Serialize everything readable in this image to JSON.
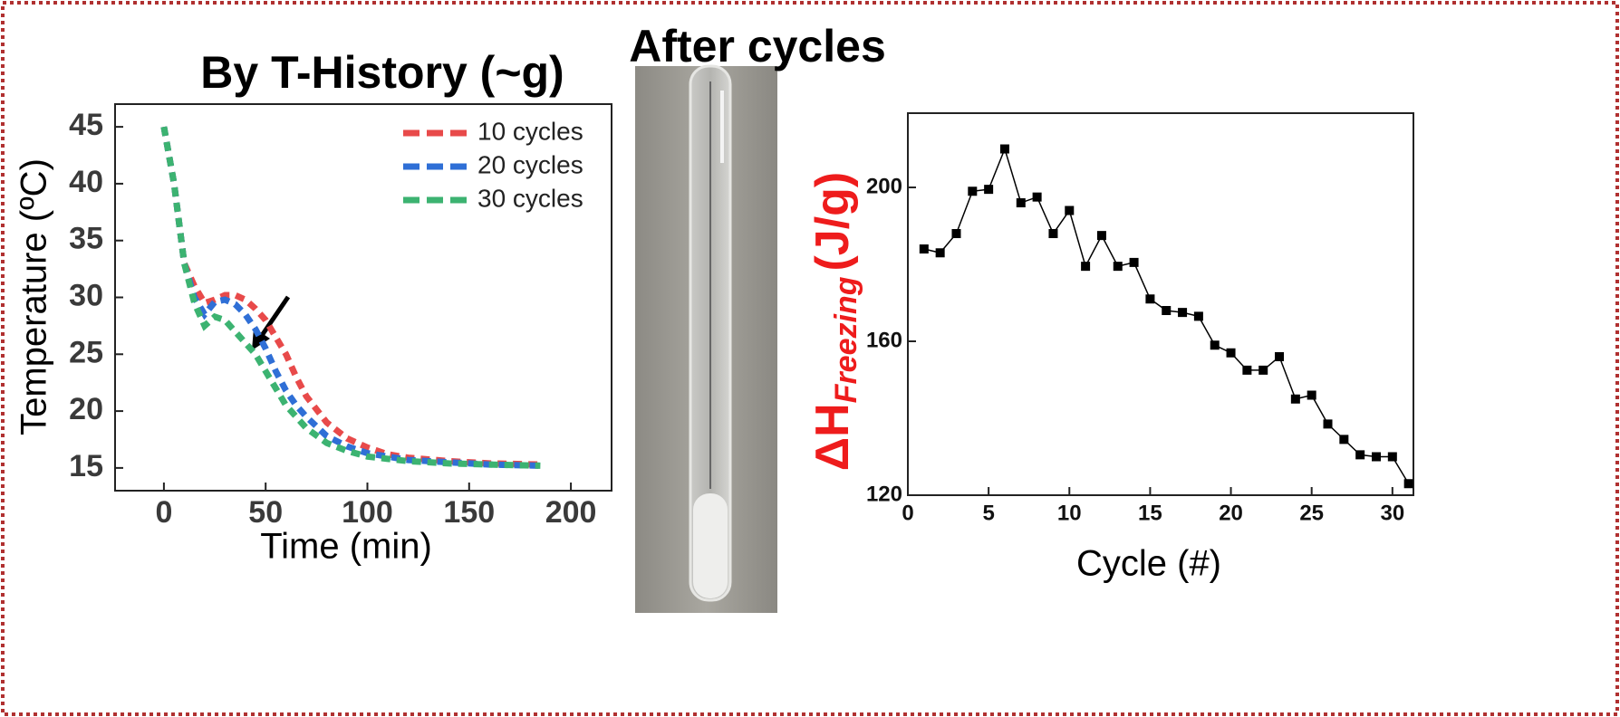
{
  "chart_data": [
    {
      "type": "line",
      "title": "By T-History (~g)",
      "xlabel": "Time (min)",
      "ylabel": "Temperature (ºC)",
      "linestyle": "dashed",
      "legend": "upper right",
      "grid": false,
      "x": [
        0,
        5,
        10,
        15,
        20,
        25,
        30,
        35,
        40,
        45,
        50,
        55,
        60,
        65,
        70,
        80,
        90,
        100,
        110,
        120,
        140,
        160,
        185
      ],
      "series": [
        {
          "name": "10 cycles",
          "color": "#e84a4a",
          "values": [
            45,
            40,
            33,
            31,
            29.5,
            29.8,
            30.2,
            30.2,
            29.8,
            29,
            28,
            26.5,
            25,
            23,
            21.3,
            19,
            17.6,
            16.8,
            16.2,
            15.9,
            15.6,
            15.4,
            15.3
          ]
        },
        {
          "name": "20 cycles",
          "color": "#2f6fd6",
          "values": [
            45,
            40,
            33,
            30,
            28.5,
            29.6,
            29.8,
            29.4,
            28.5,
            27.2,
            25.5,
            23.5,
            21.8,
            20.5,
            19.5,
            17.8,
            16.9,
            16.3,
            16,
            15.7,
            15.5,
            15.3,
            15.2
          ]
        },
        {
          "name": "30 cycles",
          "color": "#3cb371",
          "values": [
            45,
            40,
            33,
            29.5,
            27.5,
            28.3,
            28,
            27,
            26,
            25,
            23.5,
            22,
            20.5,
            19.5,
            18.5,
            17.2,
            16.5,
            16,
            15.8,
            15.6,
            15.4,
            15.3,
            15.2
          ]
        }
      ],
      "xlim": [
        -24,
        220
      ],
      "xticks": [
        0,
        50,
        100,
        150,
        200
      ],
      "ylim": [
        13,
        47
      ],
      "yticks": [
        15,
        20,
        25,
        30,
        35,
        40,
        45
      ]
    },
    {
      "type": "line",
      "marker": "square",
      "xlabel": "Cycle (#)",
      "ylabel": "ΔH",
      "ylabel_subscript": "Freezing",
      "ylabel_unit": "(J/g)",
      "grid": false,
      "x": [
        1,
        2,
        3,
        4,
        5,
        6,
        7,
        8,
        9,
        10,
        11,
        12,
        13,
        14,
        15,
        16,
        17,
        18,
        19,
        20,
        21,
        22,
        23,
        24,
        25,
        26,
        27,
        28,
        29,
        30,
        31
      ],
      "series": [
        {
          "color": "#000000",
          "values": [
            184,
            183,
            188,
            199,
            199.5,
            210,
            196,
            197.5,
            188,
            194,
            179.5,
            187.5,
            179.5,
            180.5,
            171,
            168,
            167.5,
            166.5,
            159,
            157,
            152.5,
            152.5,
            156,
            145,
            146,
            138.5,
            134.5,
            130.5,
            130,
            130,
            123
          ]
        }
      ],
      "xlim": [
        0,
        31.3
      ],
      "xticks": [
        0,
        5,
        10,
        15,
        20,
        25,
        30
      ],
      "ylim": [
        120,
        219.3
      ],
      "yticks": [
        120,
        160,
        200
      ]
    }
  ],
  "photo": {
    "title": "After cycles"
  }
}
